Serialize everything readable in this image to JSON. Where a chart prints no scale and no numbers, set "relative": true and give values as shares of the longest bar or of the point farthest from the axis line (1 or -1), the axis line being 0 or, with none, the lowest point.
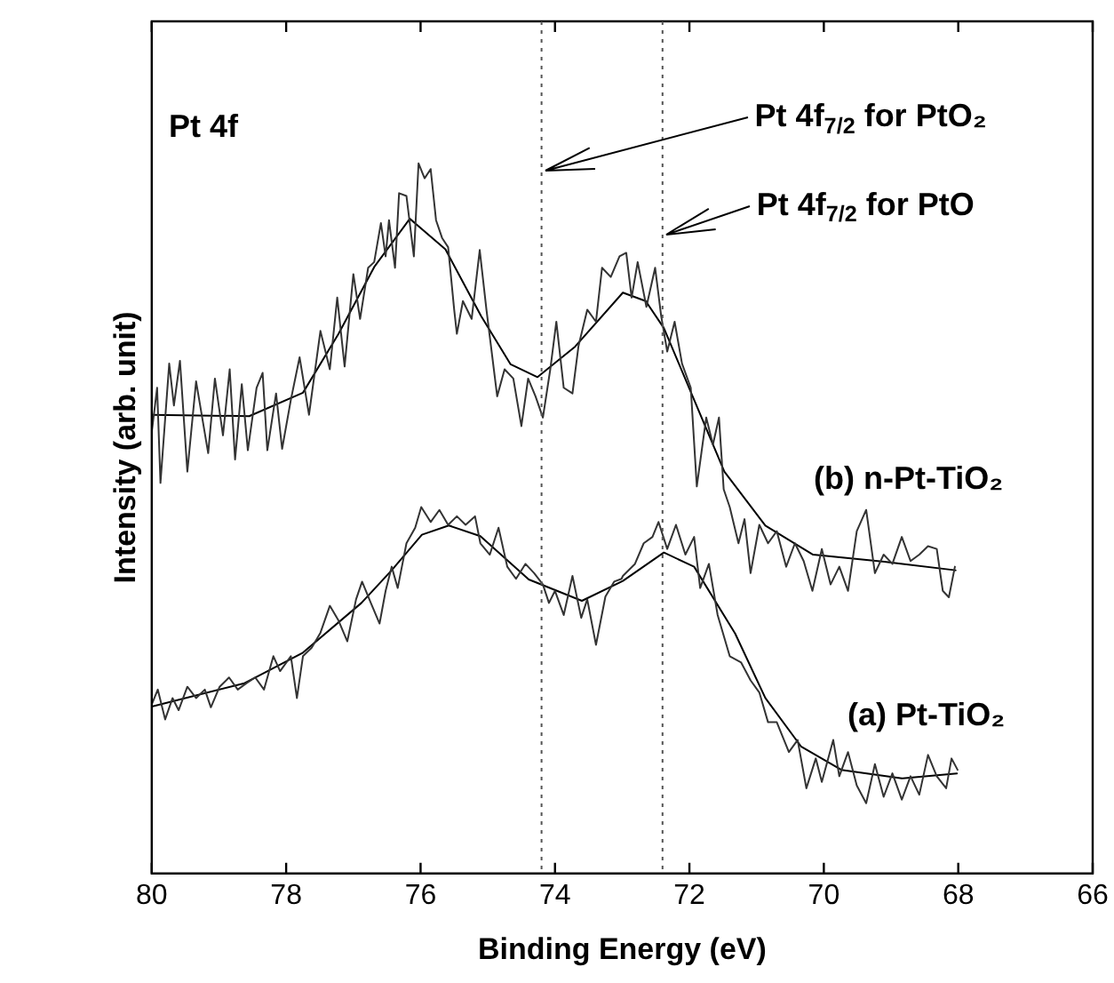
{
  "chart_data": {
    "type": "line",
    "relative": true,
    "xlabel": "Binding Energy (eV)",
    "ylabel": "Intensity (arb. unit)",
    "xlim": [
      80,
      66
    ],
    "xticks": [
      80,
      78,
      76,
      74,
      72,
      70,
      68,
      66
    ],
    "grid": false,
    "legend": false,
    "ref_lines": [
      {
        "axis": "x",
        "value": 74.2,
        "color": "#555555",
        "line_style": "dotted"
      },
      {
        "axis": "x",
        "value": 72.4,
        "color": "#555555",
        "line_style": "dotted"
      }
    ],
    "annotations": [
      "Pt 4f",
      {
        "text": "Pt 4f$_{7/2}$ for PtO₂",
        "x": 74.2,
        "y": 0.99
      },
      {
        "text": "Pt 4f$_{7/2}$ for PtO",
        "x": 72.4,
        "y": 0.9
      },
      "(b) n-Pt-TiO₂",
      "(a) Pt-TiO₂"
    ],
    "series": [
      {
        "color": "#333333",
        "x": [
          80.0,
          79.92,
          79.87,
          79.74,
          79.67,
          79.58,
          79.47,
          79.34,
          79.16,
          79.06,
          78.94,
          78.84,
          78.76,
          78.66,
          78.57,
          78.44,
          78.35,
          78.28,
          78.15,
          78.06,
          77.93,
          77.8,
          77.66,
          77.49,
          77.35,
          77.24,
          77.13,
          77.0,
          76.9,
          76.78,
          76.69,
          76.59,
          76.52,
          76.47,
          76.38,
          76.32,
          76.21,
          76.1,
          76.03,
          75.94,
          75.85,
          75.77,
          75.68,
          75.59,
          75.5,
          75.46,
          75.37,
          75.24,
          75.12,
          75.02,
          74.86,
          74.75,
          74.62,
          74.5,
          74.4,
          74.29,
          74.18,
          74.07,
          73.98,
          73.87,
          73.74,
          73.65,
          73.52,
          73.39,
          73.3,
          73.17,
          73.04,
          72.94,
          72.86,
          72.77,
          72.64,
          72.51,
          72.42,
          72.33,
          72.22,
          72.11,
          71.98,
          71.89,
          71.75,
          71.65,
          71.56,
          71.49,
          71.4,
          71.27,
          71.18,
          71.09,
          70.96,
          70.83,
          70.7,
          70.56,
          70.43,
          70.3,
          70.17,
          70.03,
          69.9,
          69.77,
          69.64,
          69.51,
          69.37,
          69.24,
          69.11,
          68.98,
          68.84,
          68.71,
          68.58,
          68.45,
          68.32,
          68.23,
          68.14,
          68.05
        ],
        "values": [
          0.621,
          0.684,
          0.55,
          0.718,
          0.659,
          0.722,
          0.566,
          0.693,
          0.592,
          0.697,
          0.617,
          0.71,
          0.583,
          0.689,
          0.596,
          0.684,
          0.705,
          0.596,
          0.676,
          0.598,
          0.667,
          0.727,
          0.646,
          0.764,
          0.71,
          0.811,
          0.714,
          0.844,
          0.781,
          0.853,
          0.861,
          0.916,
          0.869,
          0.92,
          0.853,
          0.958,
          0.954,
          0.869,
          1,
          0.979,
          0.992,
          0.92,
          0.895,
          0.882,
          0.794,
          0.76,
          0.806,
          0.781,
          0.878,
          0.794,
          0.672,
          0.71,
          0.697,
          0.63,
          0.697,
          0.672,
          0.642,
          0.71,
          0.777,
          0.684,
          0.676,
          0.743,
          0.794,
          0.777,
          0.853,
          0.84,
          0.869,
          0.874,
          0.811,
          0.861,
          0.798,
          0.853,
          0.785,
          0.735,
          0.777,
          0.718,
          0.684,
          0.545,
          0.642,
          0.604,
          0.642,
          0.541,
          0.516,
          0.465,
          0.499,
          0.423,
          0.491,
          0.465,
          0.482,
          0.432,
          0.465,
          0.44,
          0.398,
          0.457,
          0.407,
          0.432,
          0.398,
          0.482,
          0.512,
          0.423,
          0.449,
          0.436,
          0.474,
          0.44,
          0.449,
          0.461,
          0.457,
          0.398,
          0.389,
          0.432
        ]
      },
      {
        "color": "#000000",
        "x": [
          80.0,
          78.55,
          77.75,
          77.22,
          76.69,
          76.16,
          75.63,
          75.1,
          74.66,
          74.26,
          73.7,
          72.99,
          72.65,
          72.38,
          71.93,
          71.48,
          70.87,
          70.16,
          69.1,
          68.04
        ],
        "values": [
          0.646,
          0.644,
          0.677,
          0.76,
          0.854,
          0.922,
          0.879,
          0.785,
          0.717,
          0.699,
          0.742,
          0.818,
          0.806,
          0.768,
          0.667,
          0.566,
          0.49,
          0.449,
          0.439,
          0.427
        ]
      },
      {
        "color": "#333333",
        "x": [
          80.0,
          79.91,
          79.8,
          79.69,
          79.6,
          79.47,
          79.34,
          79.21,
          79.12,
          78.99,
          78.85,
          78.72,
          78.59,
          78.46,
          78.33,
          78.19,
          78.09,
          77.93,
          77.84,
          77.75,
          77.62,
          77.49,
          77.35,
          77.22,
          77.09,
          76.96,
          76.87,
          76.74,
          76.61,
          76.52,
          76.43,
          76.34,
          76.21,
          76.08,
          75.99,
          75.85,
          75.72,
          75.59,
          75.46,
          75.33,
          75.19,
          75.11,
          74.97,
          74.84,
          74.71,
          74.58,
          74.44,
          74.31,
          74.18,
          74.09,
          74.0,
          73.87,
          73.74,
          73.61,
          73.52,
          73.39,
          73.25,
          73.12,
          73.01,
          72.99,
          72.81,
          72.68,
          72.55,
          72.46,
          72.33,
          72.2,
          72.06,
          71.93,
          71.84,
          71.71,
          71.58,
          71.4,
          71.23,
          71.09,
          70.96,
          70.83,
          70.7,
          70.52,
          70.39,
          70.26,
          70.12,
          70.03,
          69.86,
          69.77,
          69.64,
          69.51,
          69.37,
          69.24,
          69.11,
          68.98,
          68.84,
          68.71,
          68.58,
          68.45,
          68.32,
          68.18,
          68.1,
          68.01
        ],
        "values": [
          0.238,
          0.259,
          0.217,
          0.247,
          0.23,
          0.263,
          0.247,
          0.259,
          0.234,
          0.263,
          0.276,
          0.259,
          0.268,
          0.276,
          0.259,
          0.306,
          0.285,
          0.306,
          0.247,
          0.306,
          0.318,
          0.339,
          0.377,
          0.356,
          0.327,
          0.386,
          0.411,
          0.381,
          0.352,
          0.398,
          0.432,
          0.402,
          0.465,
          0.487,
          0.516,
          0.495,
          0.512,
          0.491,
          0.503,
          0.491,
          0.503,
          0.465,
          0.449,
          0.487,
          0.432,
          0.415,
          0.436,
          0.423,
          0.407,
          0.381,
          0.398,
          0.364,
          0.419,
          0.36,
          0.386,
          0.322,
          0.39,
          0.411,
          0.415,
          0.419,
          0.436,
          0.465,
          0.474,
          0.495,
          0.457,
          0.491,
          0.449,
          0.474,
          0.402,
          0.436,
          0.364,
          0.306,
          0.297,
          0.272,
          0.255,
          0.213,
          0.213,
          0.171,
          0.188,
          0.12,
          0.162,
          0.129,
          0.188,
          0.137,
          0.171,
          0.124,
          0.099,
          0.154,
          0.108,
          0.141,
          0.104,
          0.137,
          0.111,
          0.167,
          0.137,
          0.12,
          0.162,
          0.146
        ]
      },
      {
        "color": "#000000",
        "x": [
          80.0,
          78.62,
          77.75,
          76.88,
          76.43,
          75.98,
          75.58,
          75.11,
          74.39,
          73.6,
          72.99,
          72.38,
          71.93,
          71.32,
          70.87,
          70.34,
          69.74,
          68.84,
          68.02
        ],
        "values": [
          0.235,
          0.268,
          0.311,
          0.381,
          0.427,
          0.477,
          0.49,
          0.475,
          0.414,
          0.384,
          0.412,
          0.452,
          0.432,
          0.338,
          0.247,
          0.179,
          0.146,
          0.134,
          0.141
        ]
      }
    ]
  }
}
